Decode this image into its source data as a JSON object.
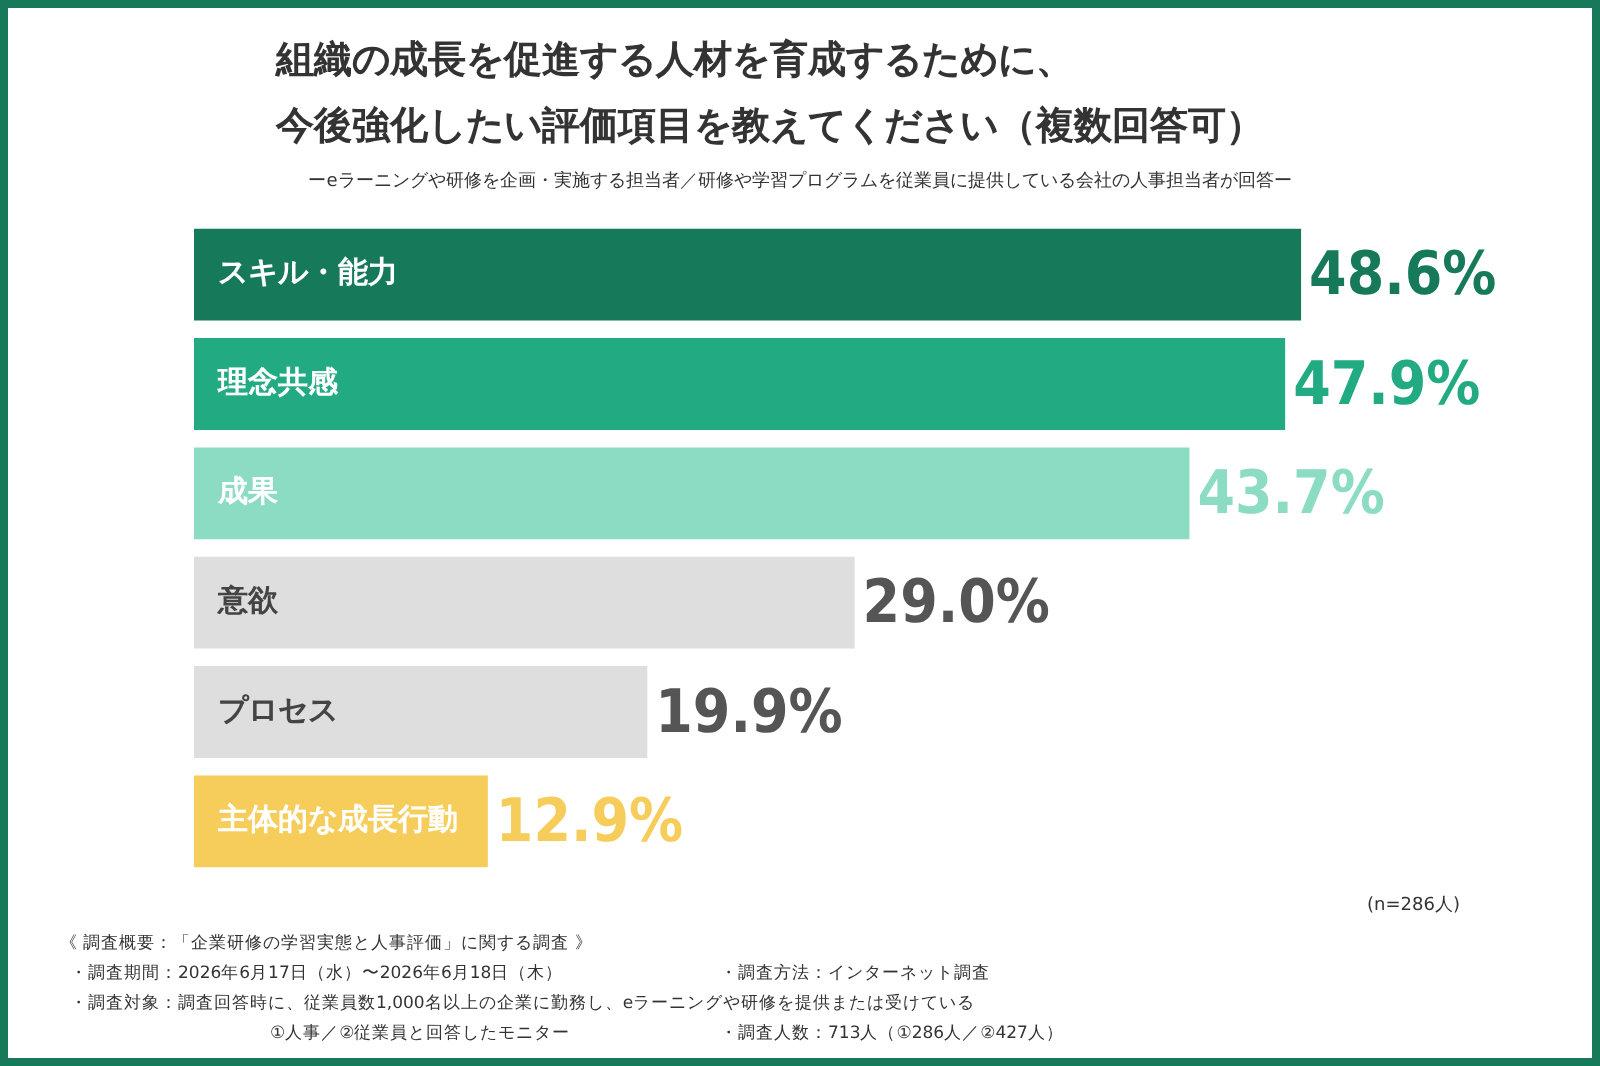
{
  "chart_data": {
    "type": "bar",
    "orientation": "horizontal",
    "title": "組織の成長を促進する人材を育成するために、今後強化したい評価項目を教えてください（複数回答可）",
    "subtitle": "ーeラーニングや研修を企画・実施する担当者／研修や学習プログラムを従業員に提供している会社の人事担当者が回答ー",
    "categories": [
      "スキル・能力",
      "理念共感",
      "成果",
      "意欲",
      "プロセス",
      "主体的な成長行動"
    ],
    "values": [
      48.6,
      47.9,
      43.7,
      29.0,
      19.9,
      12.9
    ],
    "value_labels": [
      "48.6%",
      "47.9%",
      "43.7%",
      "29.0%",
      "19.9%",
      "12.9%"
    ],
    "colors": [
      "#15795a",
      "#22ab82",
      "#8bdcc3",
      "#dedede",
      "#dedede",
      "#f6cd5b"
    ],
    "legend": false,
    "annotations": [
      "(n=286人)",
      "《 調査概要：「企業研修の学習実態と人事評価」に関する調査 》",
      "・調査期間：2026年6月17日（水）〜2026年6月18日（木）",
      "・調査方法：インターネット調査",
      "・調査対象：調査回答時に、従業員数1,000名以上の企業に勤務し、eラーニングや研修を提供または受けている",
      "①人事／②従業員と回答したモニター",
      "・調査人数：713人（①286人／②427人）"
    ]
  }
}
